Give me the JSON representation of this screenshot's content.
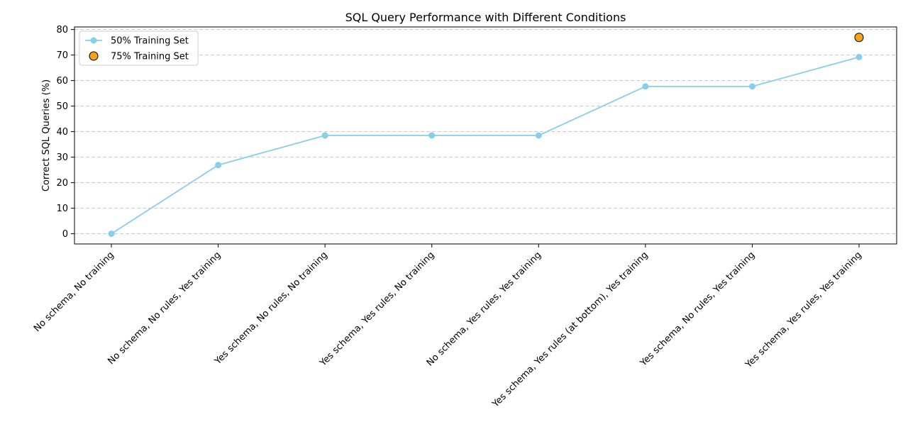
{
  "chart_data": {
    "type": "line",
    "title": "SQL Query Performance with Different Conditions",
    "xlabel": "",
    "ylabel": "Correct SQL Queries (%)",
    "ylim": [
      -4,
      81
    ],
    "yticks": [
      0,
      10,
      20,
      30,
      40,
      50,
      60,
      70,
      80
    ],
    "grid": "y-dashed",
    "legend_position": "top-left",
    "categories": [
      "No schema, No training",
      "No schema, No rules, Yes training",
      "Yes schema, No rules, No training",
      "Yes schema, Yes rules, No training",
      "No schema, Yes rules, Yes training",
      "Yes schema, Yes rules (at bottom), Yes training",
      "Yes schema, No rules, Yes training",
      "Yes schema, Yes rules, Yes training"
    ],
    "series": [
      {
        "name": "50% Training Set",
        "kind": "line",
        "color": "#87ceeb",
        "values": [
          0,
          26.9,
          38.5,
          38.5,
          38.5,
          57.7,
          57.7,
          69.2
        ]
      },
      {
        "name": "75% Training Set",
        "kind": "scatter",
        "color": "#f5a31a",
        "points": [
          {
            "category_index": 7,
            "value": 76.9
          }
        ]
      }
    ]
  }
}
